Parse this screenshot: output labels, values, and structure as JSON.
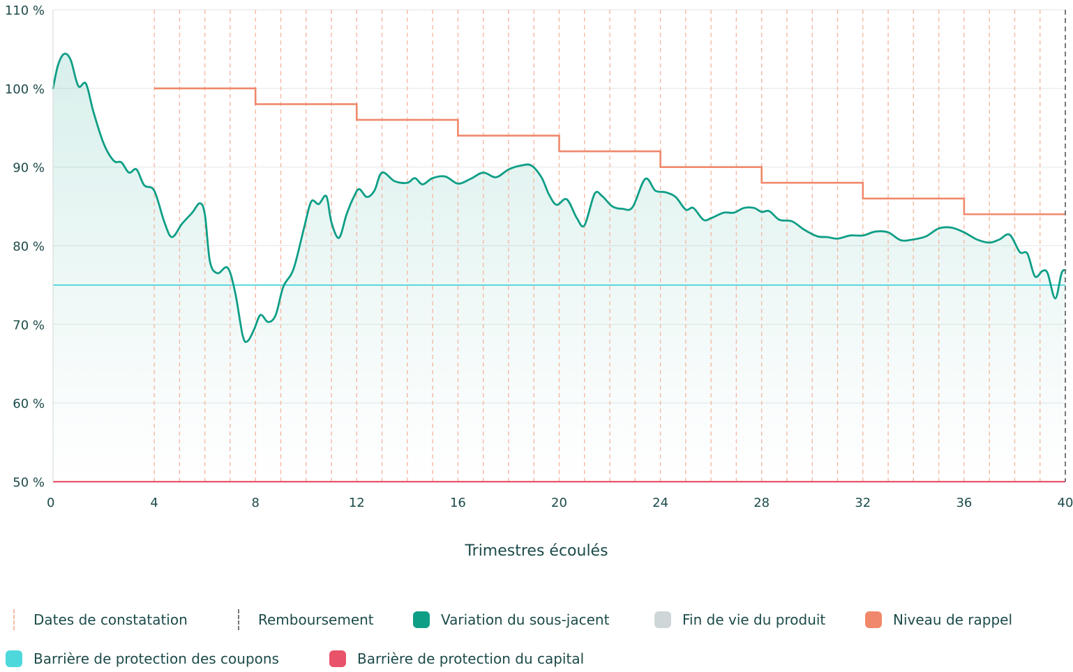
{
  "chart_data": {
    "type": "line",
    "xlabel": "Trimestres écoulés",
    "ylabel": "",
    "xlim": [
      0,
      40
    ],
    "ylim": [
      50,
      110
    ],
    "x_ticks": [
      "0",
      "4",
      "8",
      "12",
      "16",
      "20",
      "24",
      "28",
      "32",
      "36",
      "40"
    ],
    "y_ticks": [
      "50 %",
      "60 %",
      "70 %",
      "80 %",
      "90 %",
      "100 %",
      "110 %"
    ],
    "grid": "horizontal",
    "colors": {
      "underlying": "#0e9e86",
      "recall": "#f0886b",
      "coupon_barrier": "#4fd8dc",
      "capital_barrier": "#e8536a",
      "observation": "#f4b9a3",
      "redemption": "#777777",
      "end_of_life": "#cfd6d8"
    },
    "underlying": {
      "name": "Variation du sous-jacent",
      "points": [
        [
          0,
          100
        ],
        [
          0.2,
          103
        ],
        [
          0.45,
          104.4
        ],
        [
          0.7,
          103.6
        ],
        [
          1.0,
          100.3
        ],
        [
          1.3,
          100.6
        ],
        [
          1.6,
          97
        ],
        [
          2.0,
          93
        ],
        [
          2.4,
          90.8
        ],
        [
          2.7,
          90.6
        ],
        [
          3.0,
          89.3
        ],
        [
          3.3,
          89.7
        ],
        [
          3.6,
          87.7
        ],
        [
          4.0,
          87
        ],
        [
          4.4,
          83
        ],
        [
          4.7,
          81.1
        ],
        [
          5.1,
          82.8
        ],
        [
          5.5,
          84.2
        ],
        [
          5.8,
          85.4
        ],
        [
          6.0,
          84
        ],
        [
          6.2,
          78
        ],
        [
          6.5,
          76.5
        ],
        [
          6.9,
          77.2
        ],
        [
          7.2,
          74
        ],
        [
          7.5,
          68.5
        ],
        [
          7.7,
          67.9
        ],
        [
          7.95,
          69.4
        ],
        [
          8.2,
          71.2
        ],
        [
          8.5,
          70.3
        ],
        [
          8.8,
          71.2
        ],
        [
          9.1,
          74.8
        ],
        [
          9.5,
          77
        ],
        [
          9.9,
          82
        ],
        [
          10.2,
          85.6
        ],
        [
          10.5,
          85.3
        ],
        [
          10.8,
          86.3
        ],
        [
          11.0,
          83
        ],
        [
          11.3,
          81
        ],
        [
          11.6,
          84
        ],
        [
          11.9,
          86.3
        ],
        [
          12.1,
          87.2
        ],
        [
          12.4,
          86.2
        ],
        [
          12.7,
          87
        ],
        [
          13.0,
          89.3
        ],
        [
          13.5,
          88.2
        ],
        [
          14.0,
          88
        ],
        [
          14.3,
          88.6
        ],
        [
          14.6,
          87.8
        ],
        [
          15.0,
          88.6
        ],
        [
          15.5,
          88.8
        ],
        [
          16.0,
          87.9
        ],
        [
          16.5,
          88.5
        ],
        [
          17.0,
          89.3
        ],
        [
          17.5,
          88.7
        ],
        [
          18.0,
          89.7
        ],
        [
          18.5,
          90.2
        ],
        [
          18.9,
          90.2
        ],
        [
          19.3,
          88.7
        ],
        [
          19.6,
          86.5
        ],
        [
          19.9,
          85.2
        ],
        [
          20.3,
          85.9
        ],
        [
          20.7,
          83.5
        ],
        [
          21.0,
          82.6
        ],
        [
          21.4,
          86.6
        ],
        [
          21.7,
          86.3
        ],
        [
          22.1,
          85
        ],
        [
          22.5,
          84.7
        ],
        [
          22.9,
          84.9
        ],
        [
          23.4,
          88.5
        ],
        [
          23.8,
          87
        ],
        [
          24.2,
          86.8
        ],
        [
          24.6,
          86.2
        ],
        [
          25.0,
          84.6
        ],
        [
          25.3,
          84.8
        ],
        [
          25.7,
          83.3
        ],
        [
          26.0,
          83.5
        ],
        [
          26.5,
          84.2
        ],
        [
          26.9,
          84.2
        ],
        [
          27.3,
          84.8
        ],
        [
          27.7,
          84.8
        ],
        [
          28.0,
          84.3
        ],
        [
          28.3,
          84.4
        ],
        [
          28.7,
          83.3
        ],
        [
          29.2,
          83.1
        ],
        [
          29.7,
          82
        ],
        [
          30.2,
          81.2
        ],
        [
          30.6,
          81.1
        ],
        [
          31.0,
          80.9
        ],
        [
          31.5,
          81.3
        ],
        [
          32.0,
          81.3
        ],
        [
          32.5,
          81.8
        ],
        [
          33.0,
          81.7
        ],
        [
          33.5,
          80.7
        ],
        [
          34.0,
          80.8
        ],
        [
          34.5,
          81.2
        ],
        [
          35.0,
          82.2
        ],
        [
          35.5,
          82.3
        ],
        [
          36.0,
          81.7
        ],
        [
          36.5,
          80.8
        ],
        [
          37.0,
          80.4
        ],
        [
          37.4,
          80.8
        ],
        [
          37.8,
          81.4
        ],
        [
          38.2,
          79.2
        ],
        [
          38.5,
          79
        ],
        [
          38.8,
          76.1
        ],
        [
          39.1,
          76.8
        ],
        [
          39.3,
          76.5
        ],
        [
          39.6,
          73.3
        ],
        [
          39.85,
          76.5
        ],
        [
          40.0,
          76.9
        ]
      ]
    },
    "recall_level": {
      "name": "Niveau de rappel",
      "segments": [
        [
          4,
          8,
          100
        ],
        [
          8,
          12,
          98
        ],
        [
          12,
          16,
          96
        ],
        [
          16,
          20,
          94
        ],
        [
          20,
          24,
          92
        ],
        [
          24,
          28,
          90
        ],
        [
          28,
          32,
          88
        ],
        [
          32,
          36,
          86
        ],
        [
          36,
          40,
          84
        ]
      ]
    },
    "coupon_barrier": {
      "name": "Barrière de protection des coupons",
      "value": 75
    },
    "capital_barrier": {
      "name": "Barrière de protection du capital",
      "value": 50
    },
    "observation_dates": [
      4,
      5,
      6,
      7,
      8,
      9,
      10,
      11,
      12,
      13,
      14,
      15,
      16,
      17,
      18,
      19,
      20,
      21,
      22,
      23,
      24,
      25,
      26,
      27,
      28,
      29,
      30,
      31,
      32,
      33,
      34,
      35,
      36,
      37,
      38,
      39
    ],
    "redemption_date": 40
  },
  "legend": {
    "observation": "Dates de constatation",
    "redemption": "Remboursement",
    "underlying": "Variation du sous-jacent",
    "end_of_life": "Fin de vie du produit",
    "recall": "Niveau de rappel",
    "coupon_barrier": "Barrière de protection des coupons",
    "capital_barrier": "Barrière de protection du capital"
  }
}
